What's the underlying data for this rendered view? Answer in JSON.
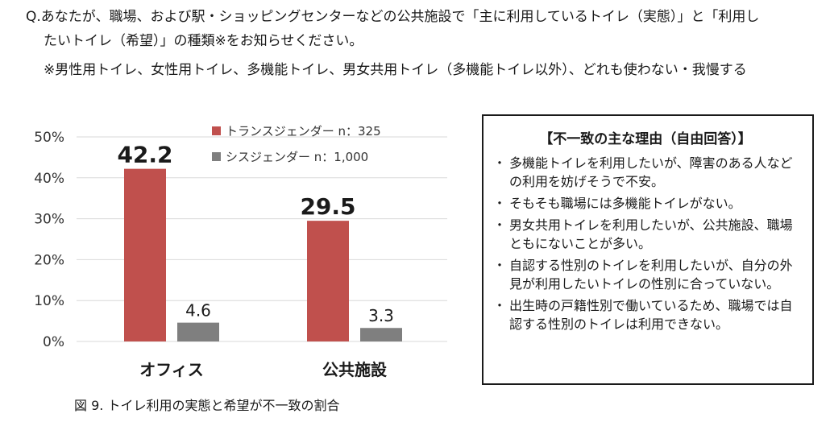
{
  "question": {
    "line1": "Q.あなたが、職場、および駅・ショッピングセンターなどの公共施設で「主に利用しているトイレ（実態）」と「利用し",
    "line2": "たいトイレ（希望）」の種類※をお知らせください。",
    "note": "※男性用トイレ、女性用トイレ、多機能トイレ、男女共用トイレ（多機能トイレ以外）、どれも使わない・我慢する"
  },
  "chart_data": {
    "type": "bar",
    "categories": [
      "オフィス",
      "公共施設"
    ],
    "series": [
      {
        "name": "トランスジェンダー n：325",
        "values": [
          42.2,
          29.5
        ],
        "labels": [
          "42.2",
          "29.5"
        ],
        "color": "#c0504d"
      },
      {
        "name": "シスジェンダー n：1,000",
        "values": [
          4.6,
          3.3
        ],
        "labels": [
          "4.6",
          "3.3"
        ],
        "color": "#7f7f7f"
      }
    ],
    "yticks": [
      "0%",
      "10%",
      "20%",
      "30%",
      "40%",
      "50%"
    ],
    "ylim": [
      0,
      50
    ],
    "grid": true,
    "legend": "top"
  },
  "reasons": {
    "title": "【不一致の主な理由（自由回答）】",
    "bullet": "・",
    "items": [
      "多機能トイレを利用したいが、障害のある人などの利用を妨げそうで不安。",
      "そもそも職場には多機能トイレがない。",
      "男女共用トイレを利用したいが、公共施設、職場ともにないことが多い。",
      "自認する性別のトイレを利用したいが、自分の外見が利用したいトイレの性別に合っていない。",
      "出生時の戸籍性別で働いているため、職場では自認する性別のトイレは利用できない。"
    ]
  },
  "caption": "図 9.  トイレ利用の実態と希望が不一致の割合"
}
